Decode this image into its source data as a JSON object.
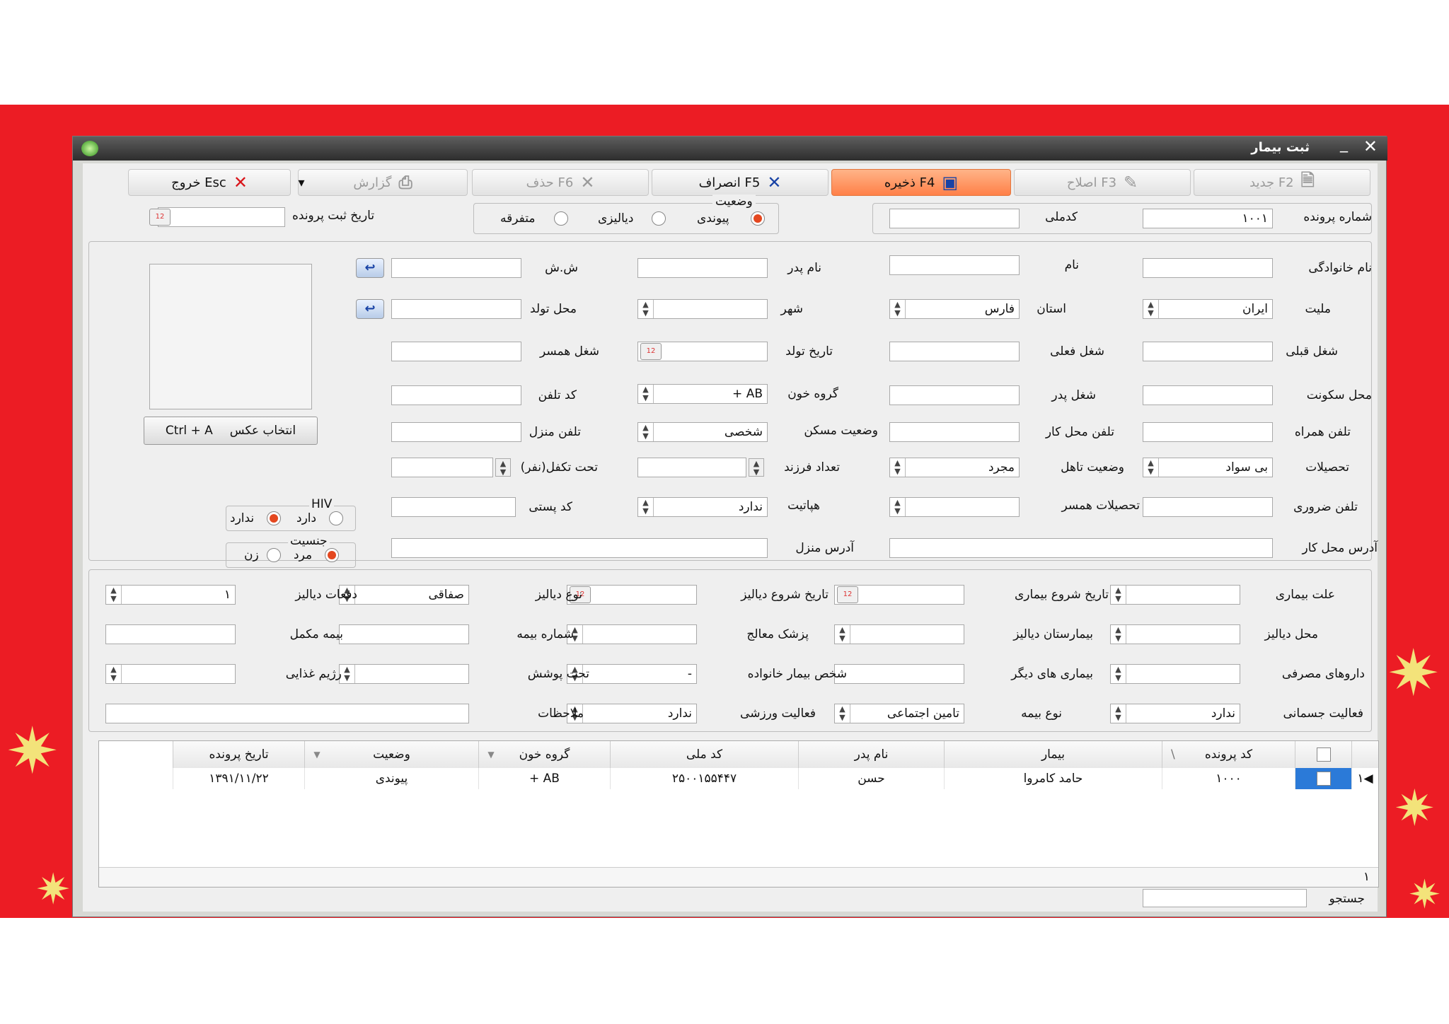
{
  "window": {
    "title": "ثبت بیمار"
  },
  "toolbar": {
    "new": "F2 جدید",
    "edit": "F3 اصلاح",
    "save": "F4 ذخیره",
    "cancel": "F5 انصراف",
    "delete": "F6 حذف",
    "report": "گزارش",
    "exit": "Esc خروج"
  },
  "header": {
    "file_no_label": "شماره پرونده",
    "file_no_value": "۱۰۰۱",
    "national_code_label": "کدملی",
    "status_group": "وضعیت",
    "status_options": [
      "پیوندی",
      "دیالیزی",
      "متفرقه"
    ],
    "reg_date_label": "تاریخ ثبت پرونده"
  },
  "form": {
    "family": "نام خانوادگی",
    "name": "نام",
    "father": "نام پدر",
    "id_no": "ش.ش",
    "nationality": "ملیت",
    "nationality_value": "ایران",
    "province": "استان",
    "province_value": "فارس",
    "city": "شهر",
    "birth_place": "محل تولد",
    "prev_job": "شغل قبلی",
    "cur_job": "شغل فعلی",
    "birth_date": "تاریخ تولد",
    "spouse_job": "شغل همسر",
    "residence": "محل سکونت",
    "father_job": "شغل پدر",
    "blood": "گروه خون",
    "blood_value": "AB +",
    "tel_code": "کد تلفن",
    "mobile": "تلفن همراه",
    "work_tel": "تلفن محل کار",
    "housing": "وضعیت مسکن",
    "housing_value": "شخصی",
    "home_tel": "تلفن منزل",
    "education": "تحصیلات",
    "education_value": "بی سواد",
    "marital": "وضعیت تاهل",
    "marital_value": "مجرد",
    "children": "تعداد فرزند",
    "dependents": "تحت تکفل(نفر)",
    "emergency_tel": "تلفن ضروری",
    "spouse_edu": "تحصیلات همسر",
    "hepatitis": "هپاتیت",
    "hepatitis_value": "ندارد",
    "postal": "کد پستی",
    "work_addr": "آدرس محل کار",
    "home_addr": "آدرس منزل",
    "photo_btn": "انتخاب عکس",
    "photo_key": "Ctrl + A",
    "hiv": "HIV",
    "hiv_yes": "دارد",
    "hiv_no": "ندارد",
    "gender": "جنسیت",
    "male": "مرد",
    "female": "زن"
  },
  "medical": {
    "cause": "علت بیماری",
    "disease_start": "تاریخ شروع بیماری",
    "dialysis_start": "تاریخ شروع دیالیز",
    "dialysis_type": "نوع دیالیز",
    "dialysis_type_value": "صفاقی",
    "dialysis_times": "دفعات دیالیز",
    "dialysis_times_value": "۱",
    "dialysis_place": "محل دیالیز",
    "dialysis_hospital": "بیمارستان دیالیز",
    "doctor": "پزشک معالج",
    "insurance_no": "شماره بیمه",
    "supp_insurance": "بیمه مکمل",
    "drugs": "داروهای مصرفی",
    "other_diseases": "بیماری های دیگر",
    "family_patient": "شخص بیمار خانواده",
    "family_patient_value": "-",
    "covered": "تحت پوشش",
    "diet": "رژیم غذایی",
    "physical": "فعالیت جسمانی",
    "physical_value": "ندارد",
    "insurance_type": "نوع بیمه",
    "insurance_type_value": "تامین اجتماعی",
    "sport": "فعالیت ورزشی",
    "sport_value": "ندارد",
    "notes": "ملاحظات"
  },
  "grid": {
    "columns": [
      "کد پرونده",
      "بیمار",
      "نام پدر",
      "کد ملی",
      "گروه خون",
      "وضعیت",
      "تاریخ پرونده"
    ],
    "sort_mark": "\\",
    "row_indicator": "۱",
    "rows": [
      {
        "file": "۱۰۰۰",
        "patient": "حامد کامروا",
        "father": "حسن",
        "national": "۲۵۰۰۱۵۵۴۴۷",
        "blood": "AB +",
        "status": "پیوندی",
        "date": "۱۳۹۱/۱۱/۲۲"
      }
    ],
    "footer_count": "۱"
  },
  "search": {
    "label": "جستجو"
  }
}
